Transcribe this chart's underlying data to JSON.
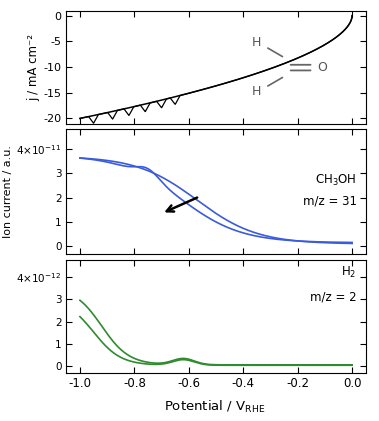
{
  "top_panel": {
    "ylabel": "j / mA cm⁻²",
    "ylim": [
      -21,
      1
    ],
    "yticks": [
      0,
      -5,
      -10,
      -15,
      -20
    ],
    "color": "black"
  },
  "mid_panel": {
    "ylim_low": -3e-12,
    "ylim_high": 4.8e-11,
    "color": "#3b5bdb",
    "label_line1": "CH$_3$OH",
    "label_line2": "m/z = 31"
  },
  "bot_panel": {
    "ylim_low": -3e-13,
    "ylim_high": 4.8e-12,
    "color": "#2e8b2e",
    "label_line1": "H$_2$",
    "label_line2": "m/z = 2"
  },
  "xlabel": "Potential / V$_\\mathrm{RHE}$",
  "xlim": [
    -1.05,
    0.05
  ],
  "xticks": [
    -1.0,
    -0.8,
    -0.6,
    -0.4,
    -0.2,
    0.0
  ],
  "xticklabels": [
    "-1.0",
    "-0.8",
    "-0.6",
    "-0.4",
    "-0.2",
    "0.0"
  ]
}
